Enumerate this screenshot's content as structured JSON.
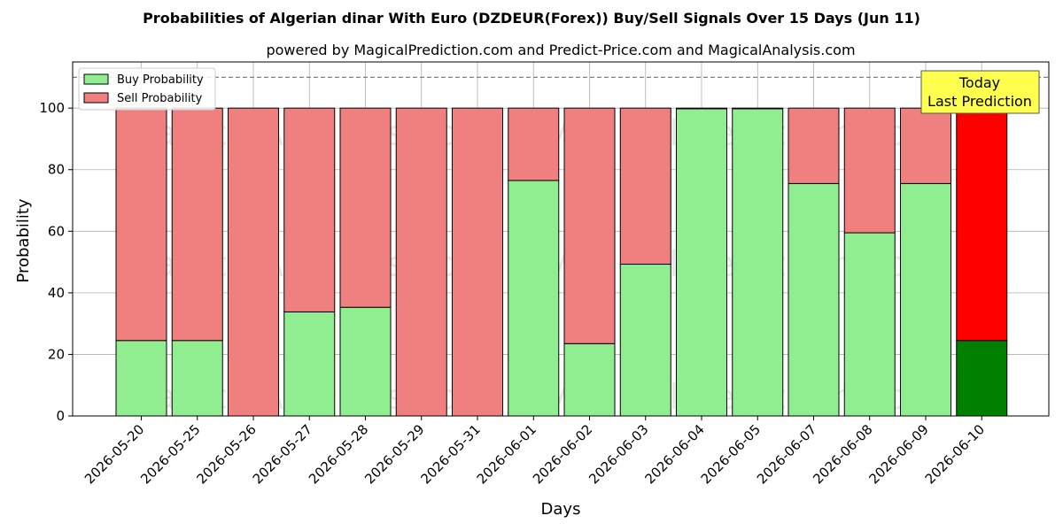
{
  "chart_data": {
    "type": "bar",
    "stacked": true,
    "title": "Probabilities of Algerian dinar With Euro (DZDEUR(Forex)) Buy/Sell Signals Over 15 Days (Jun 11)",
    "subtitle": "powered by MagicalPrediction.com and Predict-Price.com and MagicalAnalysis.com",
    "xlabel": "Days",
    "ylabel": "Probability",
    "ylim": [
      0,
      115
    ],
    "yticks": [
      0,
      20,
      40,
      60,
      80,
      100
    ],
    "reference_line": 110,
    "grid": true,
    "legend_position": "top-left",
    "categories": [
      "2026-05-20",
      "2026-05-25",
      "2026-05-26",
      "2026-05-27",
      "2026-05-28",
      "2026-05-29",
      "2026-05-31",
      "2026-06-01",
      "2026-06-02",
      "2026-06-03",
      "2026-06-04",
      "2026-06-05",
      "2026-06-07",
      "2026-06-08",
      "2026-06-09",
      "2026-06-10"
    ],
    "series": [
      {
        "name": "Buy Probability",
        "color": "#90ee90",
        "highlight_color": "#008000",
        "values": [
          24.5,
          24.5,
          0,
          33.8,
          35.3,
          0,
          0,
          76.5,
          23.5,
          49.3,
          99.8,
          99.8,
          75.5,
          59.5,
          75.5,
          24.5
        ]
      },
      {
        "name": "Sell Probability",
        "color": "#f08080",
        "highlight_color": "#ff0000",
        "values": [
          75.5,
          75.5,
          100,
          66.2,
          64.7,
          100,
          100,
          23.5,
          76.5,
          50.7,
          0.2,
          0.2,
          24.5,
          40.5,
          24.5,
          75.5
        ]
      }
    ],
    "highlight_index": 15,
    "annotation": {
      "line1": "Today",
      "line2": "Last Prediction",
      "color": "#ffff4d"
    },
    "watermarks": [
      "MagicalAnalysis.com",
      "MagicalPrediction.com"
    ]
  }
}
